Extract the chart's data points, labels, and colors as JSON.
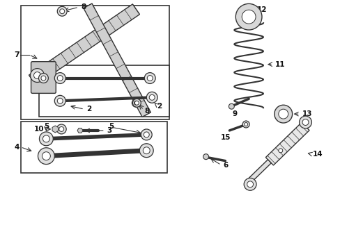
{
  "bg_color": "#ffffff",
  "lc": "#333333",
  "tc": "#111111",
  "fig_width": 4.89,
  "fig_height": 3.6,
  "dpi": 100
}
